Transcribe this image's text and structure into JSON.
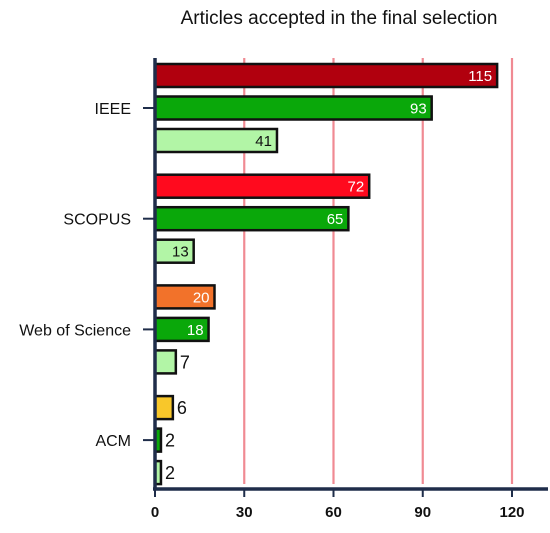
{
  "chart_data": {
    "type": "bar",
    "orientation": "horizontal",
    "title": "Articles accepted in the final selection",
    "xlabel": "",
    "ylabel": "",
    "xlim": [
      0,
      130
    ],
    "x_ticks": [
      "0",
      "30",
      "60",
      "90",
      "120"
    ],
    "grid": "vertical",
    "grid_color": "#f08a93",
    "axis_color": "#1f2d4a",
    "categories": [
      {
        "label": "IEEE",
        "bars": [
          {
            "value": 115,
            "label": "115",
            "color": "#b1000e",
            "text_color": "#ffffff"
          },
          {
            "value": 93,
            "label": "93",
            "color": "#0aa80a",
            "text_color": "#ffffff"
          },
          {
            "value": 41,
            "label": "41",
            "color": "#b2f5a6",
            "text_color": "#111111"
          }
        ]
      },
      {
        "label": "SCOPUS",
        "bars": [
          {
            "value": 72,
            "label": "72",
            "color": "#ff0a1e",
            "text_color": "#ffffff"
          },
          {
            "value": 65,
            "label": "65",
            "color": "#0aa80a",
            "text_color": "#ffffff"
          },
          {
            "value": 13,
            "label": "13",
            "color": "#b2f5a6",
            "text_color": "#111111"
          }
        ]
      },
      {
        "label": "Web of Science",
        "bars": [
          {
            "value": 20,
            "label": "20",
            "color": "#f2722a",
            "text_color": "#ffffff"
          },
          {
            "value": 18,
            "label": "18",
            "color": "#0aa80a",
            "text_color": "#ffffff"
          },
          {
            "value": 7,
            "label": "7",
            "color": "#b2f5a6",
            "text_color": "#111111"
          }
        ]
      },
      {
        "label": "ACM",
        "bars": [
          {
            "value": 6,
            "label": "6",
            "color": "#f8c72a",
            "text_color": "#111111"
          },
          {
            "value": 2,
            "label": "2",
            "color": "#0aa80a",
            "text_color": "#111111"
          },
          {
            "value": 2,
            "label": "2",
            "color": "#b2f5a6",
            "text_color": "#111111"
          }
        ]
      }
    ]
  }
}
